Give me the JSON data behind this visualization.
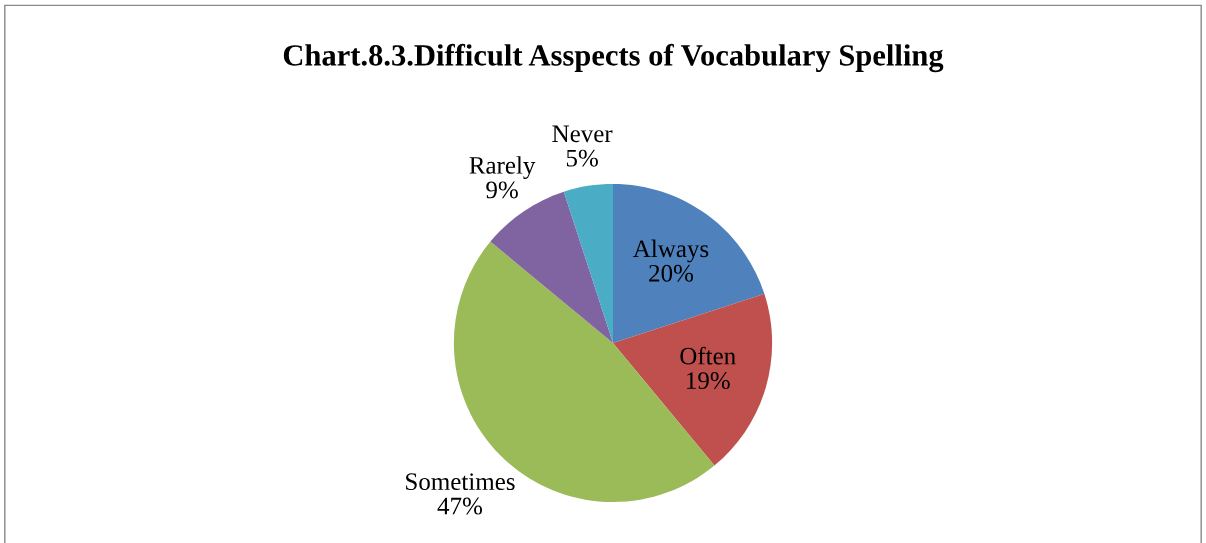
{
  "chart_data": {
    "type": "pie",
    "title": "Chart.8.3.Difficult Asspects of Vocabulary Spelling",
    "categories": [
      "Always",
      "Often",
      "Sometimes",
      "Rarely",
      "Never"
    ],
    "values": [
      20,
      19,
      47,
      9,
      5
    ],
    "colors": [
      "#4f81bd",
      "#c0504d",
      "#9bbb59",
      "#8064a2",
      "#4bacc6"
    ],
    "value_labels": [
      "20%",
      "19%",
      "47%",
      "9%",
      "5%"
    ],
    "legend": false
  }
}
